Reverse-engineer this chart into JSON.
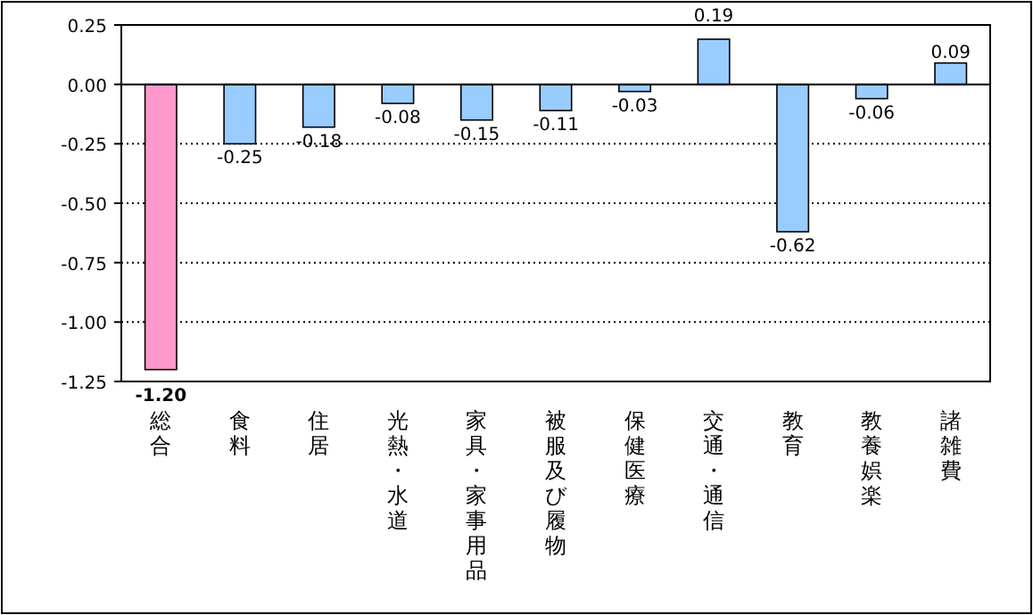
{
  "chart_data": {
    "type": "bar",
    "categories": [
      "総合",
      "食料",
      "住居",
      "光熱・水道",
      "家具・家事用品",
      "被服及び履物",
      "保健医療",
      "交通・通信",
      "教育",
      "教養娯楽",
      "諸雑費"
    ],
    "values": [
      -1.2,
      -0.25,
      -0.18,
      -0.08,
      -0.15,
      -0.11,
      -0.03,
      0.19,
      -0.62,
      -0.06,
      0.09
    ],
    "colors": [
      "#ff99cc",
      "#99ccff",
      "#99ccff",
      "#99ccff",
      "#99ccff",
      "#99ccff",
      "#99ccff",
      "#99ccff",
      "#99ccff",
      "#99ccff",
      "#99ccff"
    ],
    "value_labels": [
      "-1.20",
      "-0.25",
      "-0.18",
      "-0.08",
      "-0.15",
      "-0.11",
      "-0.03",
      "0.19",
      "-0.62",
      "-0.06",
      "0.09"
    ],
    "ylim": [
      -1.25,
      0.25
    ],
    "yticks": [
      0.25,
      {
        "value": 0,
        "label": "0.00"
      },
      {
        "value": -0.25,
        "label": "-0.25"
      },
      {
        "value": -0.5,
        "label": "-0.50"
      },
      {
        "value": -0.75,
        "label": "-0.75"
      },
      {
        "value": -1,
        "label": "-1.00"
      },
      {
        "value": -1.25,
        "label": "-1.25"
      }
    ],
    "grid": "y"
  }
}
